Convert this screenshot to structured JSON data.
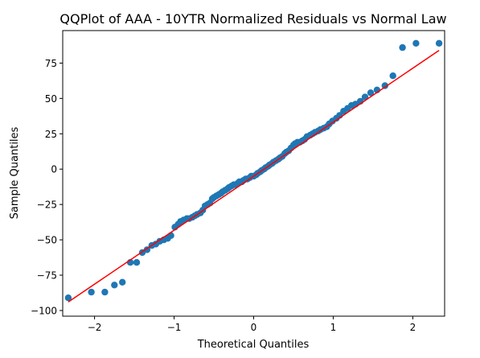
{
  "chart_data": {
    "type": "scatter",
    "title": "QQPlot of AAA - 10YTR Normalized Residuals vs Normal Law",
    "xlabel": "Theoretical Quantiles",
    "ylabel": "Sample Quantiles",
    "xlim": [
      -2.4,
      2.4
    ],
    "ylim": [
      -104,
      98
    ],
    "x_ticks": [
      -2,
      -1,
      0,
      1,
      2
    ],
    "x_tick_labels": [
      "−2",
      "−1",
      "0",
      "1",
      "2"
    ],
    "y_ticks": [
      -100,
      -75,
      -50,
      -25,
      0,
      25,
      50,
      75
    ],
    "y_tick_labels": [
      "−100",
      "−75",
      "−50",
      "−25",
      "0",
      "25",
      "50",
      "75"
    ],
    "grid": false,
    "legend": "none",
    "point_color": "#1f77b4",
    "line_color": "#ff0000",
    "reference_line": {
      "x": [
        -2.33,
        2.33
      ],
      "y": [
        -94,
        84
      ]
    },
    "points": [
      [
        -2.33,
        -91
      ],
      [
        -2.04,
        -87
      ],
      [
        -1.87,
        -87
      ],
      [
        -1.75,
        -82
      ],
      [
        -1.65,
        -80
      ],
      [
        -1.55,
        -66
      ],
      [
        -1.47,
        -66
      ],
      [
        -1.4,
        -59
      ],
      [
        -1.34,
        -57
      ],
      [
        -1.28,
        -54
      ],
      [
        -1.23,
        -53
      ],
      [
        -1.18,
        -51
      ],
      [
        -1.13,
        -50
      ],
      [
        -1.08,
        -49
      ],
      [
        -1.04,
        -47
      ],
      [
        -0.99,
        -41
      ],
      [
        -0.95,
        -39
      ],
      [
        -0.92,
        -37
      ],
      [
        -0.88,
        -36
      ],
      [
        -0.84,
        -35
      ],
      [
        -0.81,
        -35
      ],
      [
        -0.77,
        -34
      ],
      [
        -0.74,
        -33
      ],
      [
        -0.71,
        -32
      ],
      [
        -0.67,
        -31
      ],
      [
        -0.64,
        -29
      ],
      [
        -0.61,
        -26
      ],
      [
        -0.58,
        -25
      ],
      [
        -0.55,
        -24
      ],
      [
        -0.52,
        -21
      ],
      [
        -0.5,
        -20
      ],
      [
        -0.47,
        -19
      ],
      [
        -0.44,
        -18
      ],
      [
        -0.41,
        -17
      ],
      [
        -0.39,
        -16
      ],
      [
        -0.36,
        -15
      ],
      [
        -0.33,
        -14
      ],
      [
        -0.31,
        -13
      ],
      [
        -0.28,
        -12
      ],
      [
        -0.25,
        -11
      ],
      [
        -0.23,
        -11
      ],
      [
        -0.2,
        -10
      ],
      [
        -0.18,
        -9
      ],
      [
        -0.15,
        -9
      ],
      [
        -0.13,
        -8
      ],
      [
        -0.1,
        -7
      ],
      [
        -0.08,
        -7
      ],
      [
        -0.05,
        -6
      ],
      [
        -0.03,
        -5
      ],
      [
        0.0,
        -5
      ],
      [
        0.03,
        -4
      ],
      [
        0.05,
        -3
      ],
      [
        0.08,
        -2
      ],
      [
        0.1,
        -1
      ],
      [
        0.13,
        0
      ],
      [
        0.15,
        1
      ],
      [
        0.18,
        2
      ],
      [
        0.2,
        3
      ],
      [
        0.23,
        4
      ],
      [
        0.25,
        5
      ],
      [
        0.28,
        6
      ],
      [
        0.31,
        7
      ],
      [
        0.33,
        8
      ],
      [
        0.36,
        9
      ],
      [
        0.39,
        11
      ],
      [
        0.41,
        12
      ],
      [
        0.44,
        13
      ],
      [
        0.47,
        15
      ],
      [
        0.5,
        17
      ],
      [
        0.52,
        18
      ],
      [
        0.55,
        19
      ],
      [
        0.58,
        19
      ],
      [
        0.61,
        20
      ],
      [
        0.64,
        21
      ],
      [
        0.67,
        23
      ],
      [
        0.71,
        24
      ],
      [
        0.74,
        25
      ],
      [
        0.77,
        26
      ],
      [
        0.81,
        27
      ],
      [
        0.84,
        28
      ],
      [
        0.88,
        29
      ],
      [
        0.92,
        30
      ],
      [
        0.95,
        32
      ],
      [
        0.99,
        34
      ],
      [
        1.04,
        36
      ],
      [
        1.08,
        38
      ],
      [
        1.13,
        41
      ],
      [
        1.18,
        43
      ],
      [
        1.23,
        45
      ],
      [
        1.28,
        46
      ],
      [
        1.34,
        48
      ],
      [
        1.4,
        51
      ],
      [
        1.47,
        54
      ],
      [
        1.55,
        56
      ],
      [
        1.65,
        59
      ],
      [
        1.75,
        66
      ],
      [
        1.87,
        86
      ],
      [
        2.04,
        89
      ],
      [
        2.33,
        89
      ]
    ]
  }
}
